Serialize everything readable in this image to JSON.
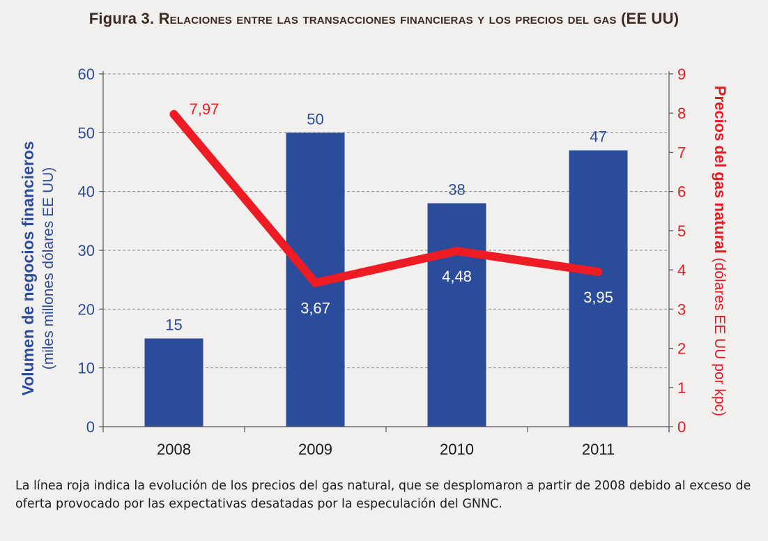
{
  "title_prefix": "Figura 3.",
  "title_text": "Relaciones entre las transacciones financieras y los precios del gas (EE UU)",
  "caption": "La línea roja indica la evolución de los precios del gas natural, que se desplomaron a partir de 2008 debido al exceso de oferta provocado por las expectativas desatadas por la especulación del GNNC.",
  "colors": {
    "bars": "#2b4c9b",
    "line": "#ed1c24",
    "left_axis_text": "#2b4c9b",
    "right_axis_text": "#e31b23"
  },
  "chart_data": {
    "type": "bar+line",
    "categories": [
      "2008",
      "2009",
      "2010",
      "2011"
    ],
    "series": [
      {
        "name": "Volumen de negocios financieros",
        "type": "bar",
        "axis": "left",
        "values": [
          15,
          50,
          38,
          47
        ],
        "labels": [
          "15",
          "50",
          "38",
          "47"
        ]
      },
      {
        "name": "Precios del gas natural",
        "type": "line",
        "axis": "right",
        "values": [
          7.97,
          3.67,
          4.48,
          3.95
        ],
        "labels": [
          "7,97",
          "3,67",
          "4,48",
          "3,95"
        ]
      }
    ],
    "ylabel_left_bold": "Volumen de negocios financieros",
    "ylabel_left_sub": "(miles millones dólares EE UU)",
    "ylabel_right_bold": "Precios del gas natural",
    "ylabel_right_sub": " (dólares EE UU por kpc)",
    "ylim_left": [
      0,
      60
    ],
    "yticks_left": [
      "0",
      "10",
      "20",
      "30",
      "40",
      "50",
      "60"
    ],
    "ylim_right": [
      0,
      9
    ],
    "yticks_right": [
      "0",
      "1",
      "2",
      "3",
      "4",
      "5",
      "6",
      "7",
      "8",
      "9"
    ],
    "grid": "horizontal dashed"
  }
}
